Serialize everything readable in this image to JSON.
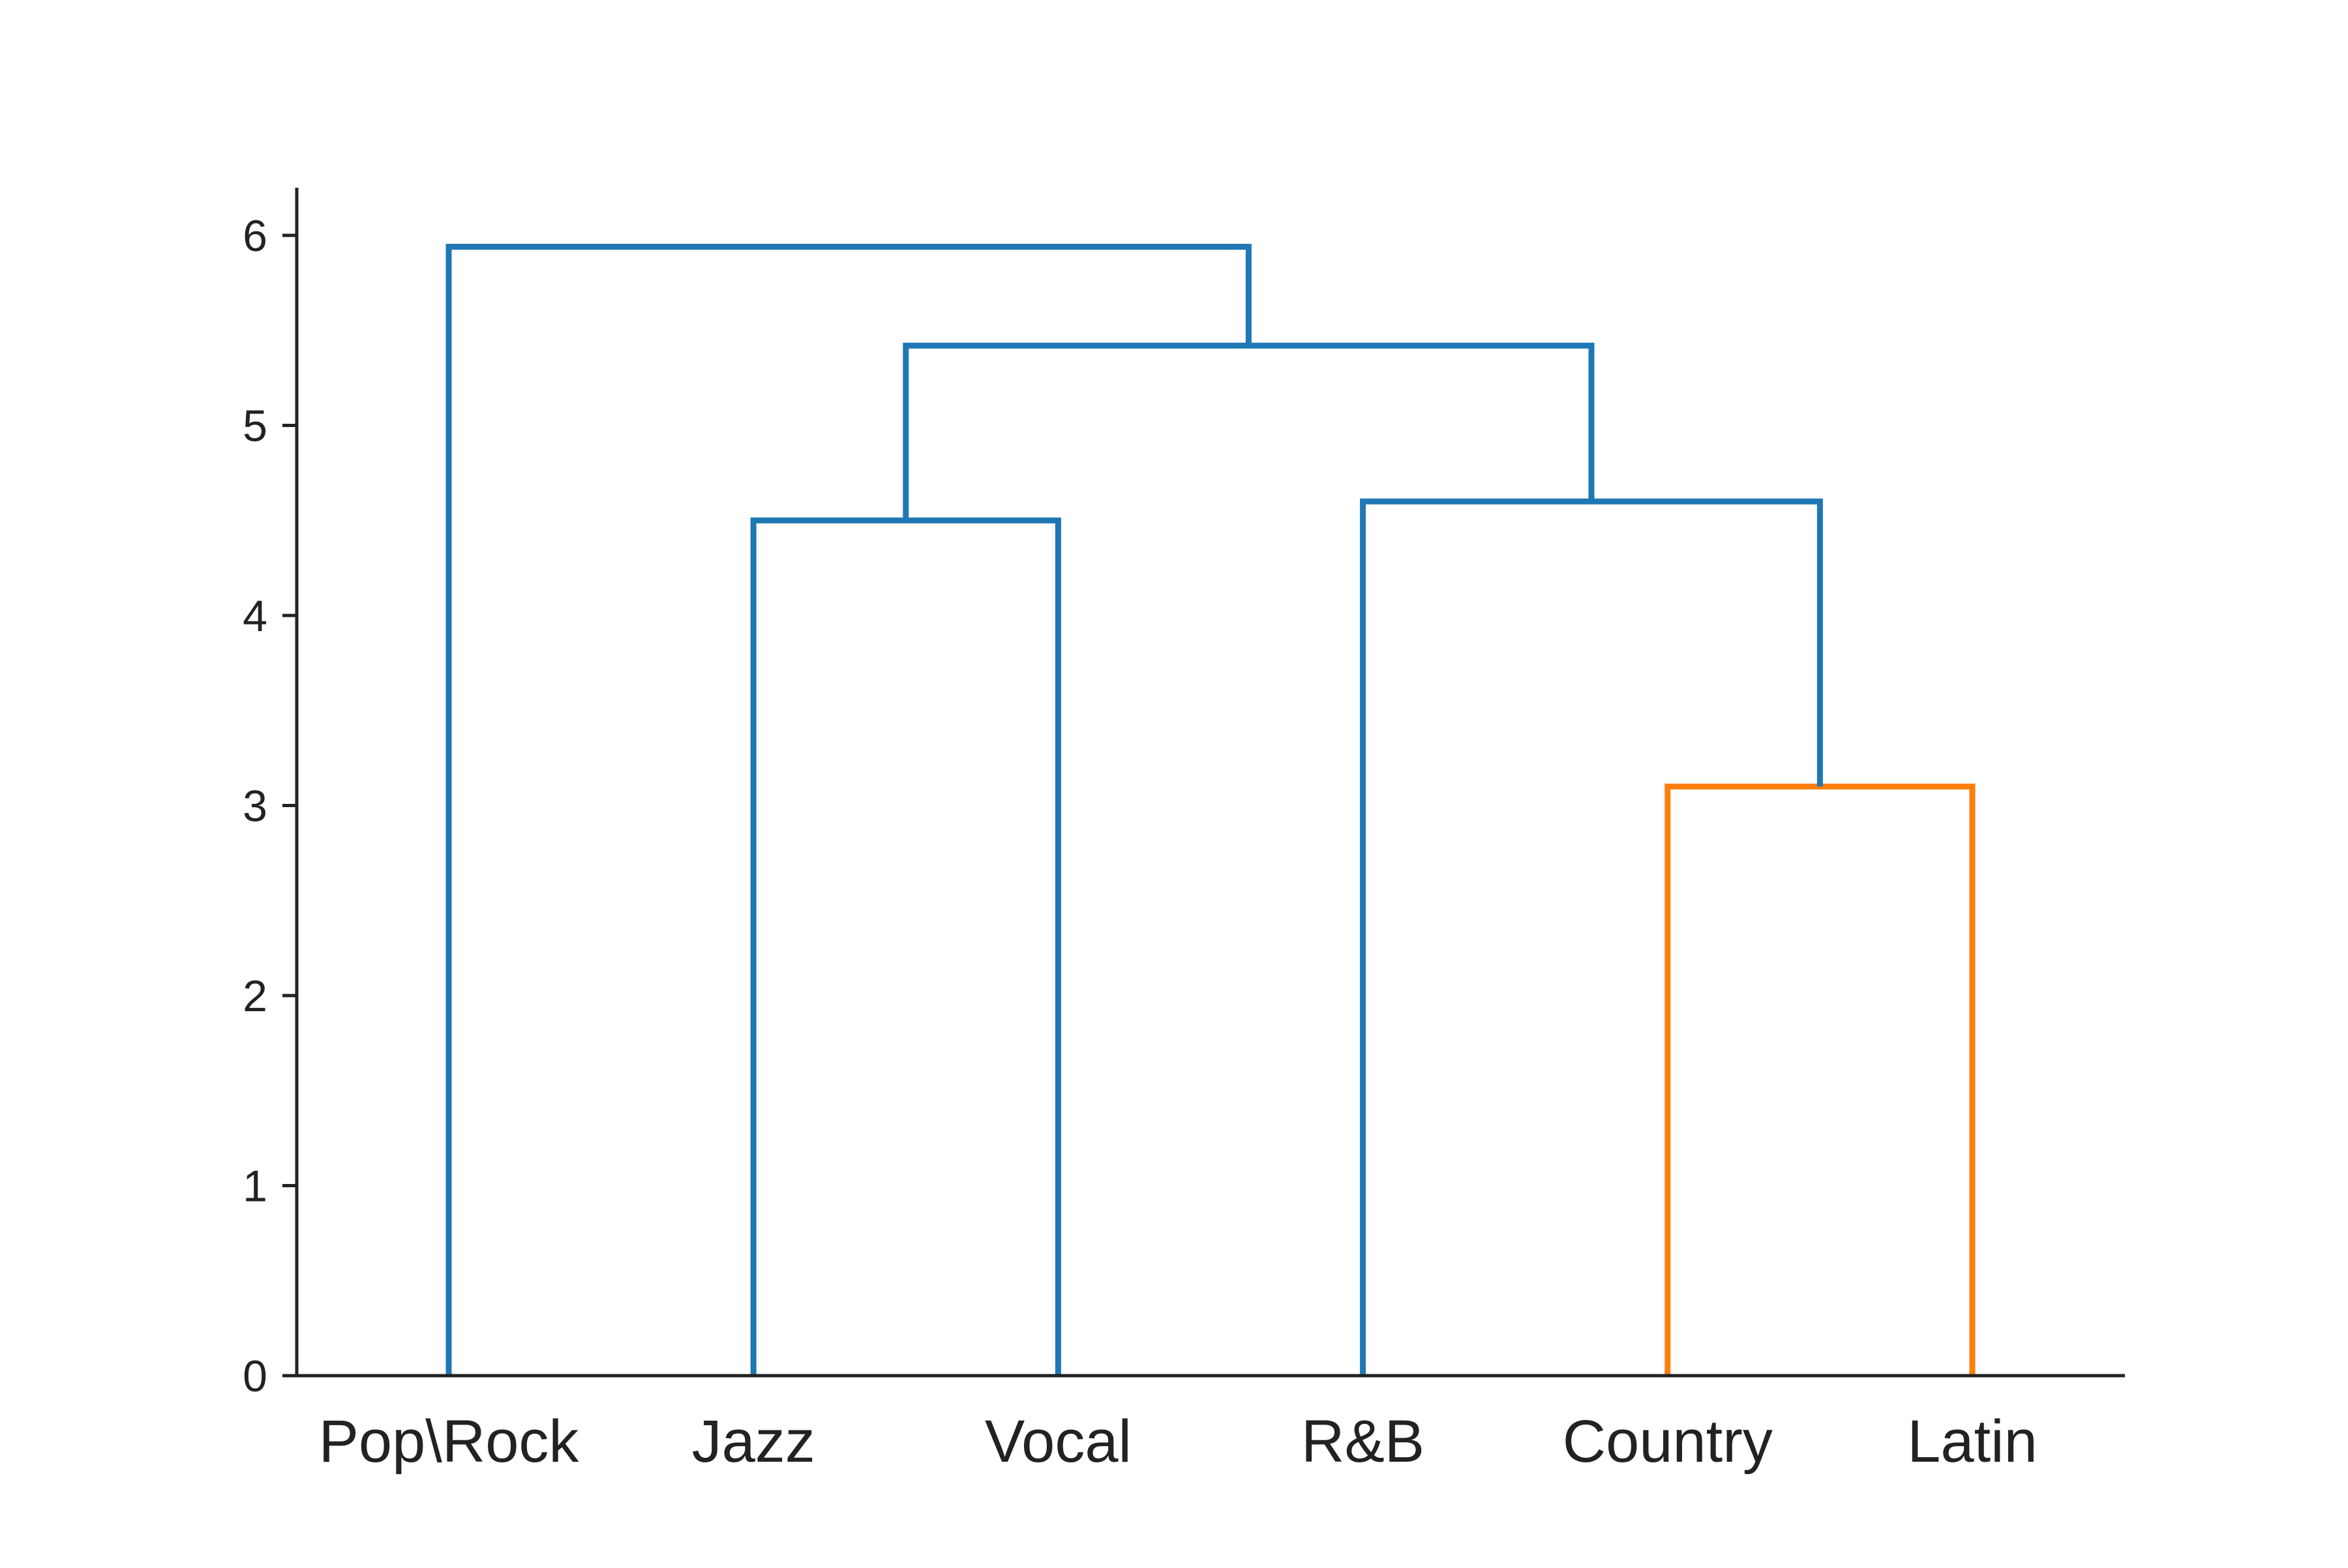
{
  "chart_data": {
    "type": "dendrogram",
    "title": "",
    "xlabel": "",
    "ylabel": "",
    "leaves": [
      "Pop\\Rock",
      "Jazz",
      "Vocal",
      "R&B",
      "Country",
      "Latin"
    ],
    "ylim": [
      0,
      6.25
    ],
    "yticks": [
      "0",
      "1",
      "2",
      "3",
      "4",
      "5",
      "6"
    ],
    "grid": false,
    "colors": {
      "default": "#1f77b4",
      "cluster": "#ff7f0e",
      "axis": "#222222"
    },
    "merges": [
      {
        "left": "Country",
        "right": "Latin",
        "height": 3.1,
        "color": "#ff7f0e"
      },
      {
        "left": "Jazz",
        "right": "Vocal",
        "height": 4.5,
        "color": "#1f77b4"
      },
      {
        "left": "R&B",
        "right": "Country+Latin",
        "height": 4.6,
        "color": "#1f77b4"
      },
      {
        "left": "Jazz+Vocal",
        "right": "R&B+Country+Latin",
        "height": 5.42,
        "color": "#1f77b4"
      },
      {
        "left": "Pop\\Rock",
        "right": "Jazz+Vocal+R&B+Country+Latin",
        "height": 5.94,
        "color": "#1f77b4"
      }
    ]
  }
}
